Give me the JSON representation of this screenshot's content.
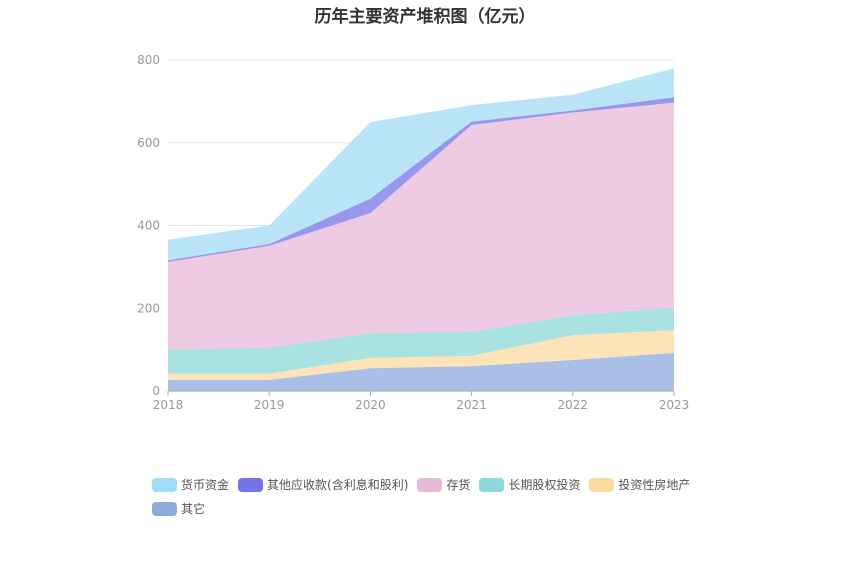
{
  "chart_data": {
    "type": "area",
    "stacked": true,
    "title": "历年主要资产堆积图（亿元）",
    "x": [
      "2018",
      "2019",
      "2020",
      "2021",
      "2022",
      "2023"
    ],
    "ylim": [
      0,
      800
    ],
    "yticks": [
      "0",
      "200",
      "400",
      "600",
      "800"
    ],
    "grid": true,
    "legend_position": "bottom",
    "series": [
      {
        "name": "其它",
        "color": "#8eaadc",
        "values": [
          27,
          27,
          55,
          60,
          75,
          92
        ]
      },
      {
        "name": "投资性房地产",
        "color": "#fcd9a0",
        "values": [
          15,
          15,
          25,
          25,
          60,
          55
        ]
      },
      {
        "name": "长期股权投资",
        "color": "#8dd8d8",
        "values": [
          58,
          63,
          60,
          58,
          48,
          55
        ]
      },
      {
        "name": "存货",
        "color": "#e8b9d9",
        "values": [
          212,
          246,
          290,
          500,
          490,
          495
        ]
      },
      {
        "name": "其他应收款(含利息和股利)",
        "color": "#7474e8",
        "values": [
          4,
          4,
          35,
          8,
          5,
          13
        ]
      },
      {
        "name": "货币资金",
        "color": "#a3dcf7",
        "values": [
          50,
          45,
          185,
          40,
          38,
          70
        ]
      }
    ],
    "legend_order": [
      "货币资金",
      "其他应收款(含利息和股利)",
      "存货",
      "长期股权投资",
      "投资性房地产",
      "其它"
    ]
  }
}
